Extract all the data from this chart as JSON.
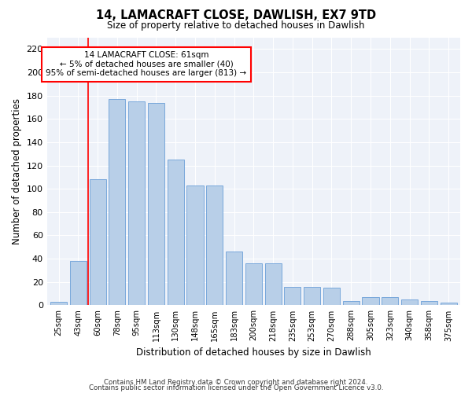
{
  "title": "14, LAMACRAFT CLOSE, DAWLISH, EX7 9TD",
  "subtitle": "Size of property relative to detached houses in Dawlish",
  "xlabel": "Distribution of detached houses by size in Dawlish",
  "ylabel": "Number of detached properties",
  "bar_labels": [
    "25sqm",
    "43sqm",
    "60sqm",
    "78sqm",
    "95sqm",
    "113sqm",
    "130sqm",
    "148sqm",
    "165sqm",
    "183sqm",
    "200sqm",
    "218sqm",
    "235sqm",
    "253sqm",
    "270sqm",
    "288sqm",
    "305sqm",
    "323sqm",
    "340sqm",
    "358sqm",
    "375sqm"
  ],
  "bar_values": [
    3,
    38,
    108,
    177,
    175,
    174,
    125,
    103,
    103,
    46,
    36,
    36,
    16,
    16,
    15,
    4,
    7,
    7,
    5,
    4,
    2
  ],
  "bar_color": "#b8cfe8",
  "bar_edge_color": "#6a9fd8",
  "vline_x_index": 1.5,
  "annotation_text_line1": "14 LAMACRAFT CLOSE: 61sqm",
  "annotation_text_line2": "← 5% of detached houses are smaller (40)",
  "annotation_text_line3": "95% of semi-detached houses are larger (813) →",
  "ylim": [
    0,
    230
  ],
  "yticks": [
    0,
    20,
    40,
    60,
    80,
    100,
    120,
    140,
    160,
    180,
    200,
    220
  ],
  "fig_bg_color": "#ffffff",
  "plot_bg_color": "#eef2f9",
  "grid_color": "#ffffff",
  "footer_line1": "Contains HM Land Registry data © Crown copyright and database right 2024.",
  "footer_line2": "Contains public sector information licensed under the Open Government Licence v3.0."
}
